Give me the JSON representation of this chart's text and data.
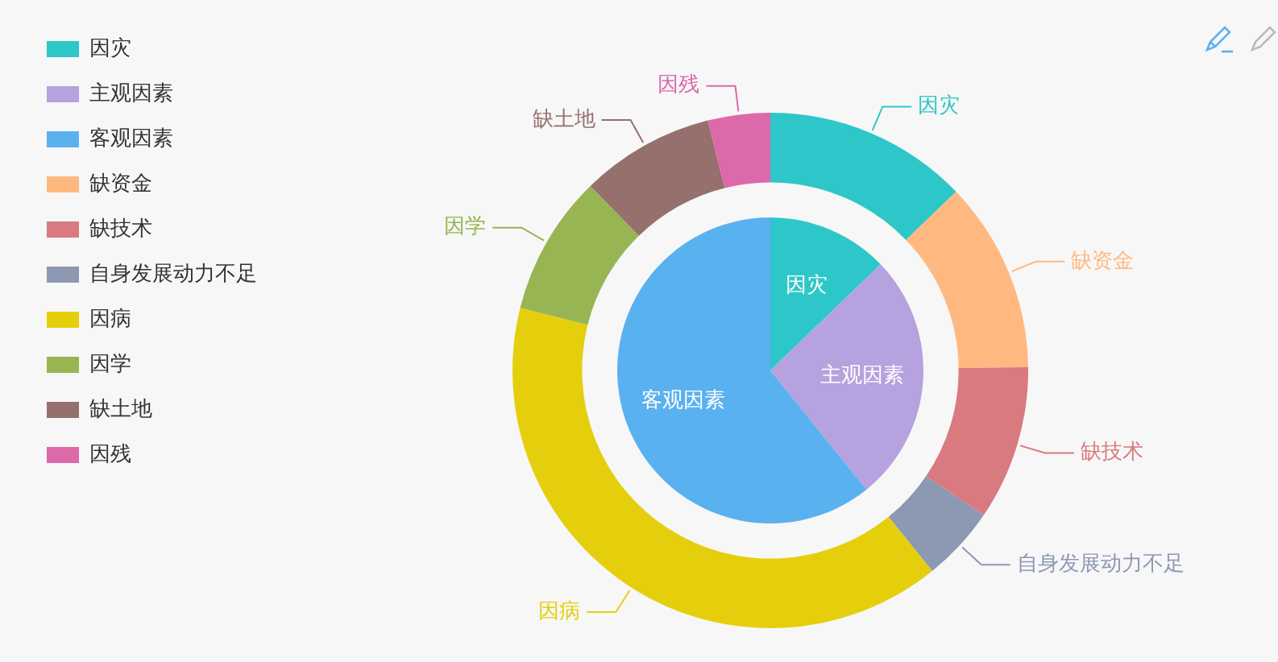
{
  "chart_data": [
    {
      "type": "pie",
      "legend": "top left",
      "categories": [
        "因灾",
        "主观因素",
        "客观因素"
      ],
      "values": [
        12.8,
        26.4,
        60.8
      ],
      "colors": [
        "#2ec7c9",
        "#b6a2de",
        "#5ab1ef"
      ]
    },
    {
      "type": "donut",
      "legend": "top left",
      "categories": [
        "因灾",
        "缺资金",
        "缺技术",
        "自身发展动力不足",
        "因病",
        "因学",
        "缺土地",
        "因残"
      ],
      "values": [
        12.8,
        12.0,
        9.7,
        4.7,
        39.7,
        8.8,
        8.4,
        3.9
      ],
      "colors": [
        "#2ec7c9",
        "#ffb980",
        "#d87a80",
        "#8d98b3",
        "#e5cf0d",
        "#97b552",
        "#95706d",
        "#dc69aa"
      ]
    }
  ]
}
